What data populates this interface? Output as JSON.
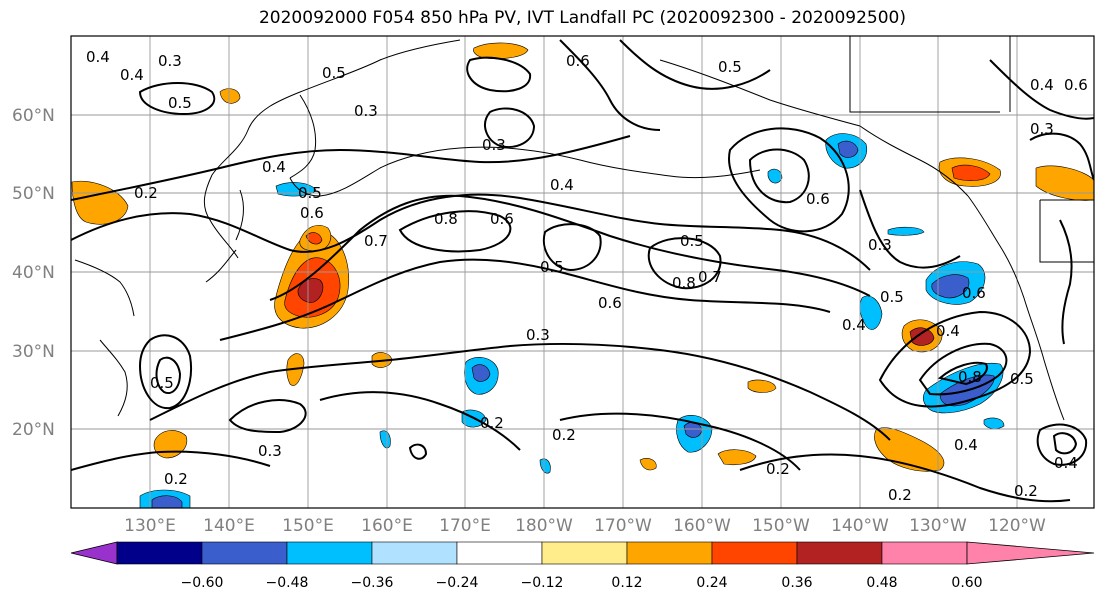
{
  "title": "2020092000 F054 850 hPa PV, IVT Landfall PC (2020092300 - 2020092500)",
  "map": {
    "lat_ticks": [
      "60°N",
      "50°N",
      "40°N",
      "30°N",
      "20°N"
    ],
    "lon_ticks": [
      "130°E",
      "140°E",
      "150°E",
      "160°E",
      "170°E",
      "180°W",
      "170°W",
      "160°W",
      "150°W",
      "140°W",
      "130°W",
      "120°W"
    ],
    "contour_labels": [
      "0.4",
      "0.3",
      "0.4",
      "0.5",
      "0.3",
      "0.5",
      "0.6",
      "0.5",
      "0.3",
      "0.2",
      "0.4",
      "0.5",
      "0.6",
      "0.8",
      "0.7",
      "0.6",
      "0.5",
      "0.5",
      "0.8",
      "0.7",
      "0.6",
      "0.4",
      "0.3",
      "0.4",
      "0.4",
      "0.5",
      "0.5",
      "0.6",
      "0.8",
      "0.2",
      "0.2",
      "0.3",
      "0.2",
      "0.2",
      "0.2",
      "0.4",
      "0.2",
      "0.3",
      "0.6",
      "0.5",
      "0.4",
      "0.6",
      "0.3",
      "0.4"
    ]
  },
  "colorbar": {
    "labels": [
      "−0.60",
      "−0.48",
      "−0.36",
      "−0.24",
      "−0.12",
      "0.12",
      "0.24",
      "0.36",
      "0.48",
      "0.60"
    ],
    "colors": [
      "#9932cc",
      "#00008b",
      "#3a5fcd",
      "#00bfff",
      "#b0e2ff",
      "#ffffff",
      "#ffec8b",
      "#ffa500",
      "#ff4500",
      "#b22222",
      "#ff82ab"
    ]
  }
}
